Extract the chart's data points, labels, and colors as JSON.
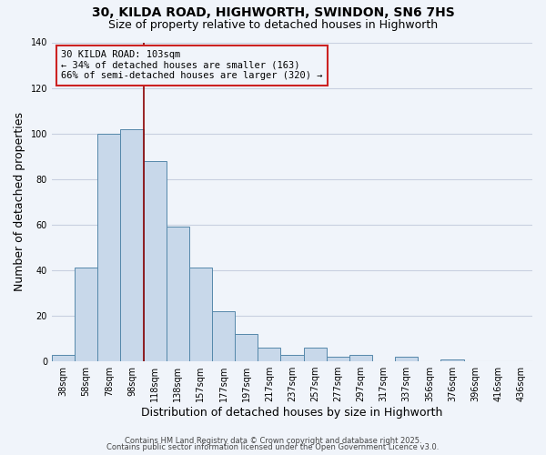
{
  "title": "30, KILDA ROAD, HIGHWORTH, SWINDON, SN6 7HS",
  "subtitle": "Size of property relative to detached houses in Highworth",
  "xlabel": "Distribution of detached houses by size in Highworth",
  "ylabel": "Number of detached properties",
  "bar_labels": [
    "38sqm",
    "58sqm",
    "78sqm",
    "98sqm",
    "118sqm",
    "138sqm",
    "157sqm",
    "177sqm",
    "197sqm",
    "217sqm",
    "237sqm",
    "257sqm",
    "277sqm",
    "297sqm",
    "317sqm",
    "337sqm",
    "356sqm",
    "376sqm",
    "396sqm",
    "416sqm",
    "436sqm"
  ],
  "bar_values": [
    3,
    41,
    100,
    102,
    88,
    59,
    41,
    22,
    12,
    6,
    3,
    6,
    2,
    3,
    0,
    2,
    0,
    1,
    0,
    0,
    0
  ],
  "bar_color": "#c8d8ea",
  "bar_edge_color": "#5588aa",
  "ylim": [
    0,
    140
  ],
  "yticks": [
    0,
    20,
    40,
    60,
    80,
    100,
    120,
    140
  ],
  "marker_label_line1": "30 KILDA ROAD: 103sqm",
  "marker_label_line2": "← 34% of detached houses are smaller (163)",
  "marker_label_line3": "66% of semi-detached houses are larger (320) →",
  "marker_color": "#8b0000",
  "annotation_box_edge_color": "#cc2222",
  "footer_line1": "Contains HM Land Registry data © Crown copyright and database right 2025.",
  "footer_line2": "Contains public sector information licensed under the Open Government Licence v3.0.",
  "bg_color": "#f0f4fa",
  "grid_color": "#c8d0e0",
  "title_fontsize": 10,
  "subtitle_fontsize": 9,
  "axis_label_fontsize": 9,
  "tick_fontsize": 7,
  "footer_fontsize": 6,
  "annotation_fontsize": 7.5
}
